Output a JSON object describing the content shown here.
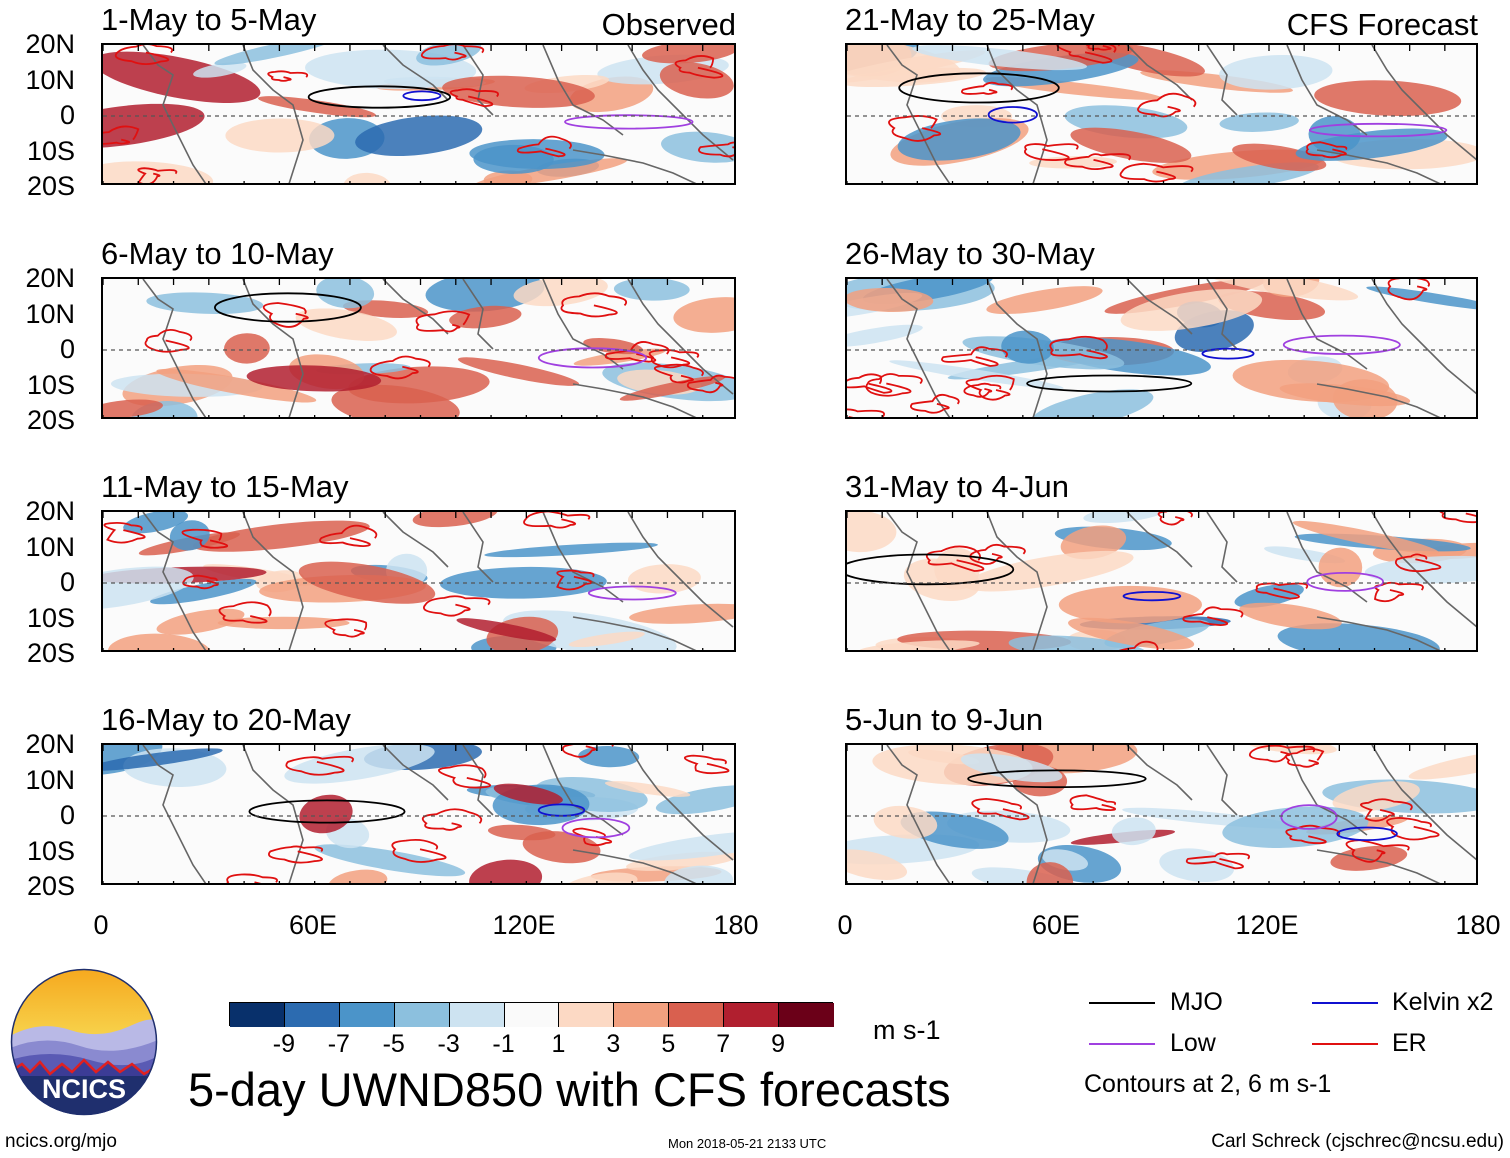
{
  "panels": [
    {
      "title": "1-May to 5-May",
      "tag": "Observed",
      "seed": 3
    },
    {
      "title": "21-May to 25-May",
      "tag": "CFS Forecast",
      "seed": 11
    },
    {
      "title": "6-May to 10-May",
      "tag": "",
      "seed": 5
    },
    {
      "title": "26-May to 30-May",
      "tag": "",
      "seed": 13
    },
    {
      "title": "11-May to 15-May",
      "tag": "",
      "seed": 7
    },
    {
      "title": "31-May to 4-Jun",
      "tag": "",
      "seed": 17
    },
    {
      "title": "16-May to 20-May",
      "tag": "",
      "seed": 9
    },
    {
      "title": "5-Jun to 9-Jun",
      "tag": "",
      "seed": 19
    }
  ],
  "lat_labels": [
    "20N",
    "10N",
    "0",
    "10S",
    "20S"
  ],
  "lon_labels": [
    "0",
    "60E",
    "120E",
    "180"
  ],
  "colorbar": {
    "colors": [
      "#08306b",
      "#2c6bb0",
      "#4b94c9",
      "#8cc0de",
      "#cde3f1",
      "#fafafa",
      "#fcd9c4",
      "#f2a07f",
      "#d9604f",
      "#b11f2f",
      "#6b0018"
    ],
    "labels": [
      "-9",
      "-7",
      "-5",
      "-3",
      "-1",
      "1",
      "3",
      "5",
      "7",
      "9"
    ],
    "units": "m s-1"
  },
  "title": "5-day UWND850 with CFS forecasts",
  "legend": {
    "items": [
      {
        "label": "MJO",
        "color": "#000000"
      },
      {
        "label": "Kelvin x2",
        "color": "#1010d0"
      },
      {
        "label": "Low",
        "color": "#a040e0"
      },
      {
        "label": "ER",
        "color": "#e01010"
      }
    ],
    "note": "Contours at 2, 6 m s-1"
  },
  "logo_text": "NCICS",
  "footer": {
    "left": "ncics.org/mjo",
    "center": "Mon 2018-05-21 2133 UTC",
    "right": "Carl Schreck (cjschrec@ncsu.edu)"
  }
}
